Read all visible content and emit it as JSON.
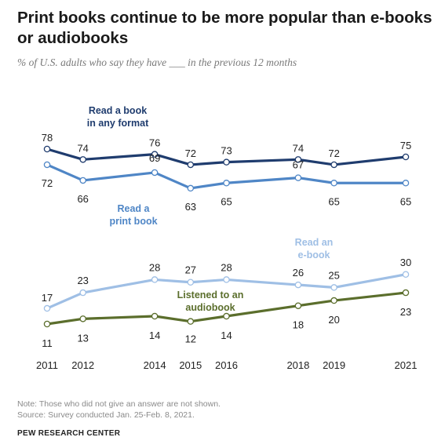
{
  "title": "Print books continue to be more popular than e-books or audiobooks",
  "subtitle": "% of U.S. adults who say they have ___ in the previous 12 months",
  "note": "Note: Those who did not give an answer are not shown.",
  "source": "Source: Survey conducted Jan. 25-Feb. 8, 2021.",
  "brand": "PEW RESEARCH CENTER",
  "chart_data": {
    "type": "line",
    "x": [
      2011,
      2012,
      2014,
      2015,
      2016,
      2018,
      2019,
      2021
    ],
    "xlabels": [
      "2011",
      "2012",
      "2014",
      "2015",
      "2016",
      "2018",
      "2019",
      "2021"
    ],
    "series": [
      {
        "name": "Read a book in any format",
        "label_lines": [
          "Read a book",
          "in any format"
        ],
        "color": "#1f3c6e",
        "values": [
          78,
          74,
          76,
          72,
          73,
          74,
          72,
          75
        ]
      },
      {
        "name": "Read a print book",
        "label_lines": [
          "Read a",
          "print book"
        ],
        "color": "#4f86c6",
        "values": [
          72,
          66,
          69,
          63,
          65,
          67,
          65,
          65
        ]
      },
      {
        "name": "Read an e-book",
        "label_lines": [
          "Read an",
          "e-book"
        ],
        "color": "#9fbfe5",
        "values": [
          17,
          23,
          28,
          27,
          28,
          26,
          25,
          30
        ]
      },
      {
        "name": "Listened to an audiobook",
        "label_lines": [
          "Listened to an",
          "audiobook"
        ],
        "color": "#5b6e2c",
        "values": [
          11,
          13,
          14,
          12,
          14,
          18,
          20,
          23
        ]
      }
    ]
  }
}
